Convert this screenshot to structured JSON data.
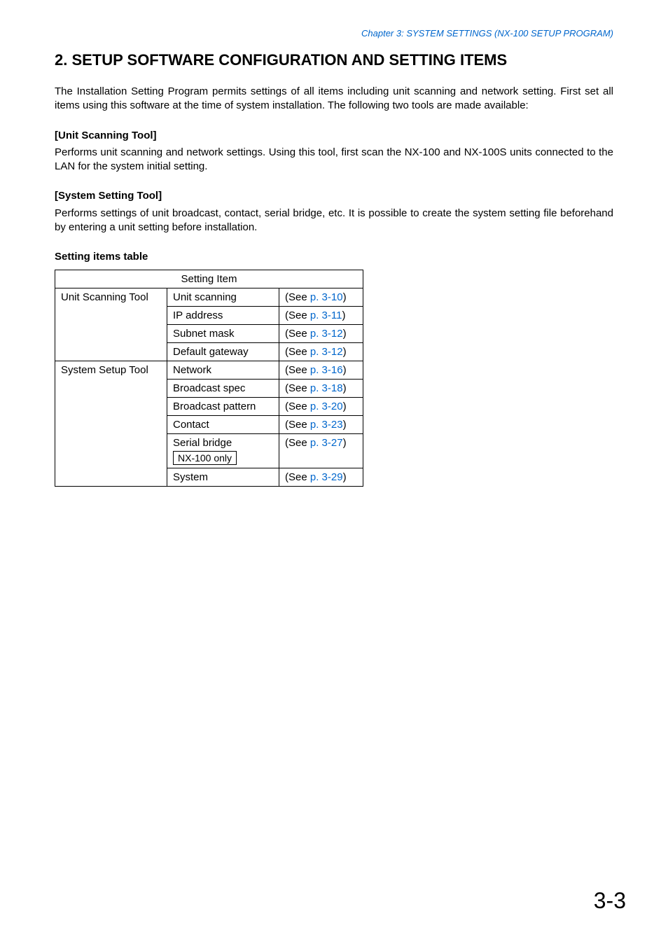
{
  "chapter_header": {
    "text": "Chapter 3:  SYSTEM SETTINGS (NX-100 SETUP PROGRAM)",
    "color": "#0066cc",
    "fontsize": 13
  },
  "section_title": {
    "text": "2. SETUP SOFTWARE CONFIGURATION AND SETTING ITEMS",
    "fontsize": 22
  },
  "intro": {
    "text": "The Installation Setting Program permits settings of all items including unit scanning and network setting. First set all items using this software at the time of system installation. The following two tools are made available:",
    "fontsize": 15,
    "line_height": 1.35
  },
  "subsections": [
    {
      "head": "[Unit Scanning Tool]",
      "body": "Performs unit scanning and network settings. Using this tool, first scan the NX-100 and NX-100S units connected to the LAN for the system initial setting."
    },
    {
      "head": "[System Setting Tool]",
      "body": "Performs settings of unit broadcast, contact, serial bridge, etc. It is possible to create the system setting file beforehand by entering a unit setting before installation."
    }
  ],
  "table": {
    "caption": "Setting items table",
    "header": "Setting Item",
    "link_color": "#0066cc",
    "fontsize": 15,
    "groups": [
      {
        "tool": "Unit Scanning Tool",
        "rows": [
          {
            "item": "Unit scanning",
            "see": "(See ",
            "page": "p. 3-10",
            "close": ")",
            "note": null
          },
          {
            "item": "IP address",
            "see": "(See ",
            "page": "p. 3-11",
            "close": ")",
            "note": null
          },
          {
            "item": "Subnet mask",
            "see": "(See ",
            "page": "p. 3-12",
            "close": ")",
            "note": null
          },
          {
            "item": "Default gateway",
            "see": "(See ",
            "page": "p. 3-12",
            "close": ")",
            "note": null
          }
        ]
      },
      {
        "tool": "System Setup Tool",
        "rows": [
          {
            "item": "Network",
            "see": "(See ",
            "page": "p. 3-16",
            "close": ")",
            "note": null
          },
          {
            "item": "Broadcast spec",
            "see": "(See ",
            "page": "p. 3-18",
            "close": ")",
            "note": null
          },
          {
            "item": "Broadcast pattern",
            "see": "(See ",
            "page": "p. 3-20",
            "close": ")",
            "note": null
          },
          {
            "item": "Contact",
            "see": "(See ",
            "page": "p. 3-23",
            "close": ")",
            "note": null
          },
          {
            "item": "Serial bridge",
            "see": "(See ",
            "page": "p. 3-27",
            "close": ")",
            "note": "NX-100 only"
          },
          {
            "item": "System",
            "see": "(See ",
            "page": "p. 3-29",
            "close": ")",
            "note": null
          }
        ]
      }
    ]
  },
  "page_number": {
    "text": "3-3",
    "fontsize": 32
  }
}
